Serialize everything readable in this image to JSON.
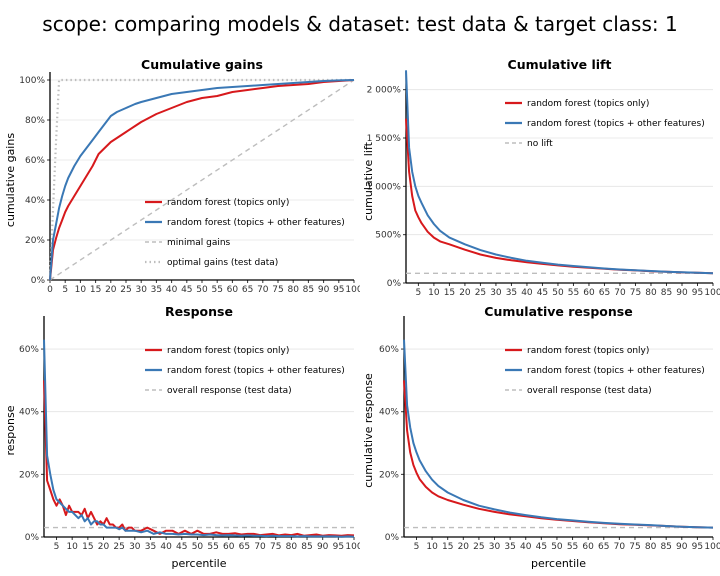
{
  "title": "scope: comparing models & dataset: test data & target class: 1",
  "colors": {
    "rf_topics": "#d7191c",
    "rf_other": "#3a78b5",
    "ref": "#bdbdbd",
    "grid": "#e4e4e4"
  },
  "chart_data": [
    {
      "id": "gains",
      "type": "line",
      "title": "Cumulative gains",
      "xlabel": "",
      "ylabel": "cumulative gains",
      "xlim": [
        0,
        100
      ],
      "ylim": [
        0,
        1
      ],
      "x_ticks": [
        0,
        5,
        10,
        15,
        20,
        25,
        30,
        35,
        40,
        45,
        50,
        55,
        60,
        65,
        70,
        75,
        80,
        85,
        90,
        95,
        100
      ],
      "x_tick_labels": [
        "0",
        "5",
        "10",
        "15",
        "20",
        "25",
        "30",
        "35",
        "40",
        "45",
        "50",
        "55",
        "60",
        "65",
        "70",
        "75",
        "80",
        "85",
        "90",
        "95",
        "100"
      ],
      "y_ticks": [
        0,
        0.2,
        0.4,
        0.6,
        0.8,
        1
      ],
      "y_tick_labels": [
        "0%",
        "20%",
        "40%",
        "60%",
        "80%",
        "100%"
      ],
      "legend_position": "center-right",
      "series": [
        {
          "name": "random forest (topics only)",
          "style": "solid",
          "color_key": "rf_topics",
          "x": [
            0,
            1,
            2,
            3,
            4,
            5,
            6,
            8,
            10,
            12,
            14,
            15,
            16,
            18,
            20,
            22,
            25,
            28,
            30,
            35,
            40,
            45,
            50,
            55,
            60,
            65,
            70,
            75,
            80,
            85,
            90,
            95,
            100
          ],
          "y": [
            0,
            0.15,
            0.21,
            0.26,
            0.3,
            0.34,
            0.37,
            0.42,
            0.47,
            0.52,
            0.57,
            0.6,
            0.63,
            0.66,
            0.69,
            0.71,
            0.74,
            0.77,
            0.79,
            0.83,
            0.86,
            0.89,
            0.91,
            0.92,
            0.94,
            0.95,
            0.96,
            0.97,
            0.975,
            0.98,
            0.99,
            0.995,
            1
          ]
        },
        {
          "name": "random forest (topics + other features)",
          "style": "solid",
          "color_key": "rf_other",
          "x": [
            0,
            1,
            2,
            3,
            4,
            5,
            6,
            8,
            10,
            12,
            14,
            15,
            16,
            18,
            20,
            22,
            25,
            28,
            30,
            35,
            40,
            45,
            50,
            55,
            60,
            65,
            70,
            75,
            80,
            85,
            90,
            95,
            100
          ],
          "y": [
            0,
            0.2,
            0.28,
            0.36,
            0.42,
            0.47,
            0.51,
            0.57,
            0.62,
            0.66,
            0.7,
            0.72,
            0.74,
            0.78,
            0.82,
            0.84,
            0.86,
            0.88,
            0.89,
            0.91,
            0.93,
            0.94,
            0.95,
            0.96,
            0.965,
            0.97,
            0.975,
            0.98,
            0.985,
            0.99,
            0.995,
            0.998,
            1
          ]
        },
        {
          "name": "minimal gains",
          "style": "dashed",
          "color_key": "ref",
          "x": [
            0,
            100
          ],
          "y": [
            0,
            1
          ]
        },
        {
          "name": "optimal gains (test data)",
          "style": "dotted",
          "color_key": "ref",
          "x": [
            0,
            1,
            2,
            3,
            100
          ],
          "y": [
            0,
            0.35,
            0.7,
            1,
            1
          ]
        }
      ]
    },
    {
      "id": "lift",
      "type": "line",
      "title": "Cumulative lift",
      "xlabel": "",
      "ylabel": "cumulative lift",
      "xlim": [
        1,
        100
      ],
      "ylim": [
        0,
        21
      ],
      "x_ticks": [
        5,
        10,
        15,
        20,
        25,
        30,
        35,
        40,
        45,
        50,
        55,
        60,
        65,
        70,
        75,
        80,
        85,
        90,
        95,
        100
      ],
      "x_tick_labels": [
        "5",
        "10",
        "15",
        "20",
        "25",
        "30",
        "35",
        "40",
        "45",
        "50",
        "55",
        "60",
        "65",
        "70",
        "75",
        "80",
        "85",
        "90",
        "95",
        "100"
      ],
      "y_ticks": [
        0,
        5,
        10,
        15,
        20
      ],
      "y_tick_labels": [
        "0%",
        "500%",
        "1 000%",
        "1 500%",
        "2 000%"
      ],
      "legend_position": "top-right",
      "series": [
        {
          "name": "random forest (topics only)",
          "style": "solid",
          "color_key": "rf_topics",
          "x": [
            1,
            2,
            3,
            4,
            5,
            6,
            8,
            10,
            12,
            15,
            20,
            25,
            30,
            35,
            40,
            45,
            50,
            55,
            60,
            65,
            70,
            75,
            80,
            85,
            90,
            95,
            100
          ],
          "y": [
            17,
            11.5,
            9,
            7.5,
            6.8,
            6.2,
            5.3,
            4.7,
            4.3,
            4.0,
            3.45,
            2.95,
            2.6,
            2.35,
            2.15,
            1.98,
            1.82,
            1.68,
            1.57,
            1.47,
            1.38,
            1.3,
            1.22,
            1.16,
            1.1,
            1.05,
            1.0
          ]
        },
        {
          "name": "random forest (topics + other features)",
          "style": "solid",
          "color_key": "rf_other",
          "x": [
            1,
            2,
            3,
            4,
            5,
            6,
            8,
            10,
            12,
            15,
            20,
            25,
            30,
            35,
            40,
            45,
            50,
            55,
            60,
            65,
            70,
            75,
            80,
            85,
            90,
            95,
            100
          ],
          "y": [
            22,
            14,
            11.5,
            10,
            9,
            8.3,
            7.0,
            6.1,
            5.4,
            4.7,
            4.0,
            3.4,
            2.95,
            2.6,
            2.3,
            2.1,
            1.9,
            1.76,
            1.62,
            1.5,
            1.4,
            1.32,
            1.24,
            1.17,
            1.11,
            1.05,
            1.0
          ]
        },
        {
          "name": "no lift",
          "style": "dashed",
          "color_key": "ref",
          "x": [
            1,
            100
          ],
          "y": [
            1,
            1
          ]
        }
      ]
    },
    {
      "id": "response",
      "type": "line",
      "title": "Response",
      "xlabel": "percentile",
      "ylabel": "response",
      "xlim": [
        1,
        100
      ],
      "ylim": [
        0,
        0.68
      ],
      "x_ticks": [
        5,
        10,
        15,
        20,
        25,
        30,
        35,
        40,
        45,
        50,
        55,
        60,
        65,
        70,
        75,
        80,
        85,
        90,
        95,
        100
      ],
      "x_tick_labels": [
        "5",
        "10",
        "15",
        "20",
        "25",
        "30",
        "35",
        "40",
        "45",
        "50",
        "55",
        "60",
        "65",
        "70",
        "75",
        "80",
        "85",
        "90",
        "95",
        "100"
      ],
      "y_ticks": [
        0,
        0.2,
        0.4,
        0.6
      ],
      "y_tick_labels": [
        "0%",
        "20%",
        "40%",
        "60%"
      ],
      "legend_position": "top-right",
      "series": [
        {
          "name": "random forest (topics only)",
          "style": "solid",
          "color_key": "rf_topics",
          "x": [
            1,
            2,
            3,
            4,
            5,
            6,
            7,
            8,
            9,
            10,
            11,
            12,
            13,
            14,
            15,
            16,
            17,
            18,
            19,
            20,
            21,
            22,
            23,
            24,
            25,
            26,
            27,
            28,
            29,
            30,
            32,
            34,
            36,
            38,
            40,
            42,
            44,
            46,
            48,
            50,
            52,
            54,
            56,
            58,
            60,
            62,
            64,
            66,
            68,
            70,
            72,
            74,
            76,
            78,
            80,
            82,
            84,
            86,
            88,
            90,
            92,
            94,
            96,
            98,
            100
          ],
          "y": [
            0.5,
            0.18,
            0.15,
            0.12,
            0.1,
            0.12,
            0.1,
            0.07,
            0.1,
            0.08,
            0.08,
            0.08,
            0.07,
            0.09,
            0.06,
            0.08,
            0.06,
            0.04,
            0.05,
            0.04,
            0.06,
            0.04,
            0.04,
            0.03,
            0.03,
            0.04,
            0.02,
            0.03,
            0.03,
            0.02,
            0.02,
            0.03,
            0.02,
            0.01,
            0.02,
            0.02,
            0.01,
            0.02,
            0.01,
            0.02,
            0.01,
            0.01,
            0.015,
            0.01,
            0.01,
            0.012,
            0.008,
            0.01,
            0.01,
            0.006,
            0.008,
            0.01,
            0.005,
            0.008,
            0.006,
            0.01,
            0.004,
            0.006,
            0.008,
            0.004,
            0.006,
            0.005,
            0.004,
            0.006,
            0.005
          ]
        },
        {
          "name": "random forest (topics + other features)",
          "style": "solid",
          "color_key": "rf_other",
          "x": [
            1,
            2,
            3,
            4,
            5,
            6,
            7,
            8,
            9,
            10,
            11,
            12,
            13,
            14,
            15,
            16,
            17,
            18,
            19,
            20,
            21,
            22,
            23,
            24,
            25,
            26,
            27,
            28,
            29,
            30,
            32,
            34,
            36,
            38,
            40,
            42,
            44,
            46,
            48,
            50,
            52,
            54,
            56,
            58,
            60,
            62,
            64,
            66,
            68,
            70,
            72,
            74,
            76,
            78,
            80,
            82,
            84,
            86,
            88,
            90,
            92,
            94,
            96,
            98,
            100
          ],
          "y": [
            0.63,
            0.26,
            0.2,
            0.15,
            0.12,
            0.11,
            0.1,
            0.09,
            0.08,
            0.08,
            0.07,
            0.06,
            0.07,
            0.05,
            0.06,
            0.04,
            0.05,
            0.05,
            0.04,
            0.04,
            0.03,
            0.03,
            0.03,
            0.03,
            0.025,
            0.03,
            0.02,
            0.02,
            0.02,
            0.02,
            0.015,
            0.02,
            0.01,
            0.015,
            0.01,
            0.01,
            0.008,
            0.01,
            0.008,
            0.008,
            0.006,
            0.008,
            0.006,
            0.005,
            0.006,
            0.005,
            0.004,
            0.005,
            0.004,
            0.004,
            0.003,
            0.004,
            0.003,
            0.003,
            0.003,
            0.002,
            0.003,
            0.002,
            0.002,
            0.002,
            0.002,
            0.002,
            0.001,
            0.002,
            0.001
          ]
        },
        {
          "name": "overall response (test data)",
          "style": "dashed",
          "color_key": "ref",
          "x": [
            1,
            100
          ],
          "y": [
            0.03,
            0.03
          ]
        }
      ]
    },
    {
      "id": "cumresponse",
      "type": "line",
      "title": "Cumulative response",
      "xlabel": "percentile",
      "ylabel": "cumulative response",
      "xlim": [
        1,
        100
      ],
      "ylim": [
        0,
        0.68
      ],
      "x_ticks": [
        5,
        10,
        15,
        20,
        25,
        30,
        35,
        40,
        45,
        50,
        55,
        60,
        65,
        70,
        75,
        80,
        85,
        90,
        95,
        100
      ],
      "x_tick_labels": [
        "5",
        "10",
        "15",
        "20",
        "25",
        "30",
        "35",
        "40",
        "45",
        "50",
        "55",
        "60",
        "65",
        "70",
        "75",
        "80",
        "85",
        "90",
        "95",
        "100"
      ],
      "y_ticks": [
        0,
        0.2,
        0.4,
        0.6
      ],
      "y_tick_labels": [
        "0%",
        "20%",
        "40%",
        "60%"
      ],
      "legend_position": "top-right",
      "series": [
        {
          "name": "random forest (topics only)",
          "style": "solid",
          "color_key": "rf_topics",
          "x": [
            1,
            2,
            3,
            4,
            5,
            6,
            8,
            10,
            12,
            15,
            20,
            25,
            30,
            35,
            40,
            45,
            50,
            55,
            60,
            65,
            70,
            75,
            80,
            85,
            90,
            95,
            100
          ],
          "y": [
            0.5,
            0.34,
            0.27,
            0.23,
            0.205,
            0.185,
            0.16,
            0.142,
            0.13,
            0.118,
            0.103,
            0.09,
            0.08,
            0.072,
            0.066,
            0.06,
            0.055,
            0.051,
            0.047,
            0.044,
            0.041,
            0.039,
            0.037,
            0.035,
            0.033,
            0.031,
            0.03
          ]
        },
        {
          "name": "random forest (topics + other features)",
          "style": "solid",
          "color_key": "rf_other",
          "x": [
            1,
            2,
            3,
            4,
            5,
            6,
            8,
            10,
            12,
            15,
            20,
            25,
            30,
            35,
            40,
            45,
            50,
            55,
            60,
            65,
            70,
            75,
            80,
            85,
            90,
            95,
            100
          ],
          "y": [
            0.63,
            0.42,
            0.35,
            0.3,
            0.27,
            0.245,
            0.21,
            0.183,
            0.163,
            0.142,
            0.118,
            0.1,
            0.088,
            0.078,
            0.07,
            0.063,
            0.057,
            0.053,
            0.049,
            0.045,
            0.042,
            0.04,
            0.038,
            0.035,
            0.033,
            0.031,
            0.03
          ]
        },
        {
          "name": "overall response (test data)",
          "style": "dashed",
          "color_key": "ref",
          "x": [
            1,
            100
          ],
          "y": [
            0.03,
            0.03
          ]
        }
      ]
    }
  ]
}
